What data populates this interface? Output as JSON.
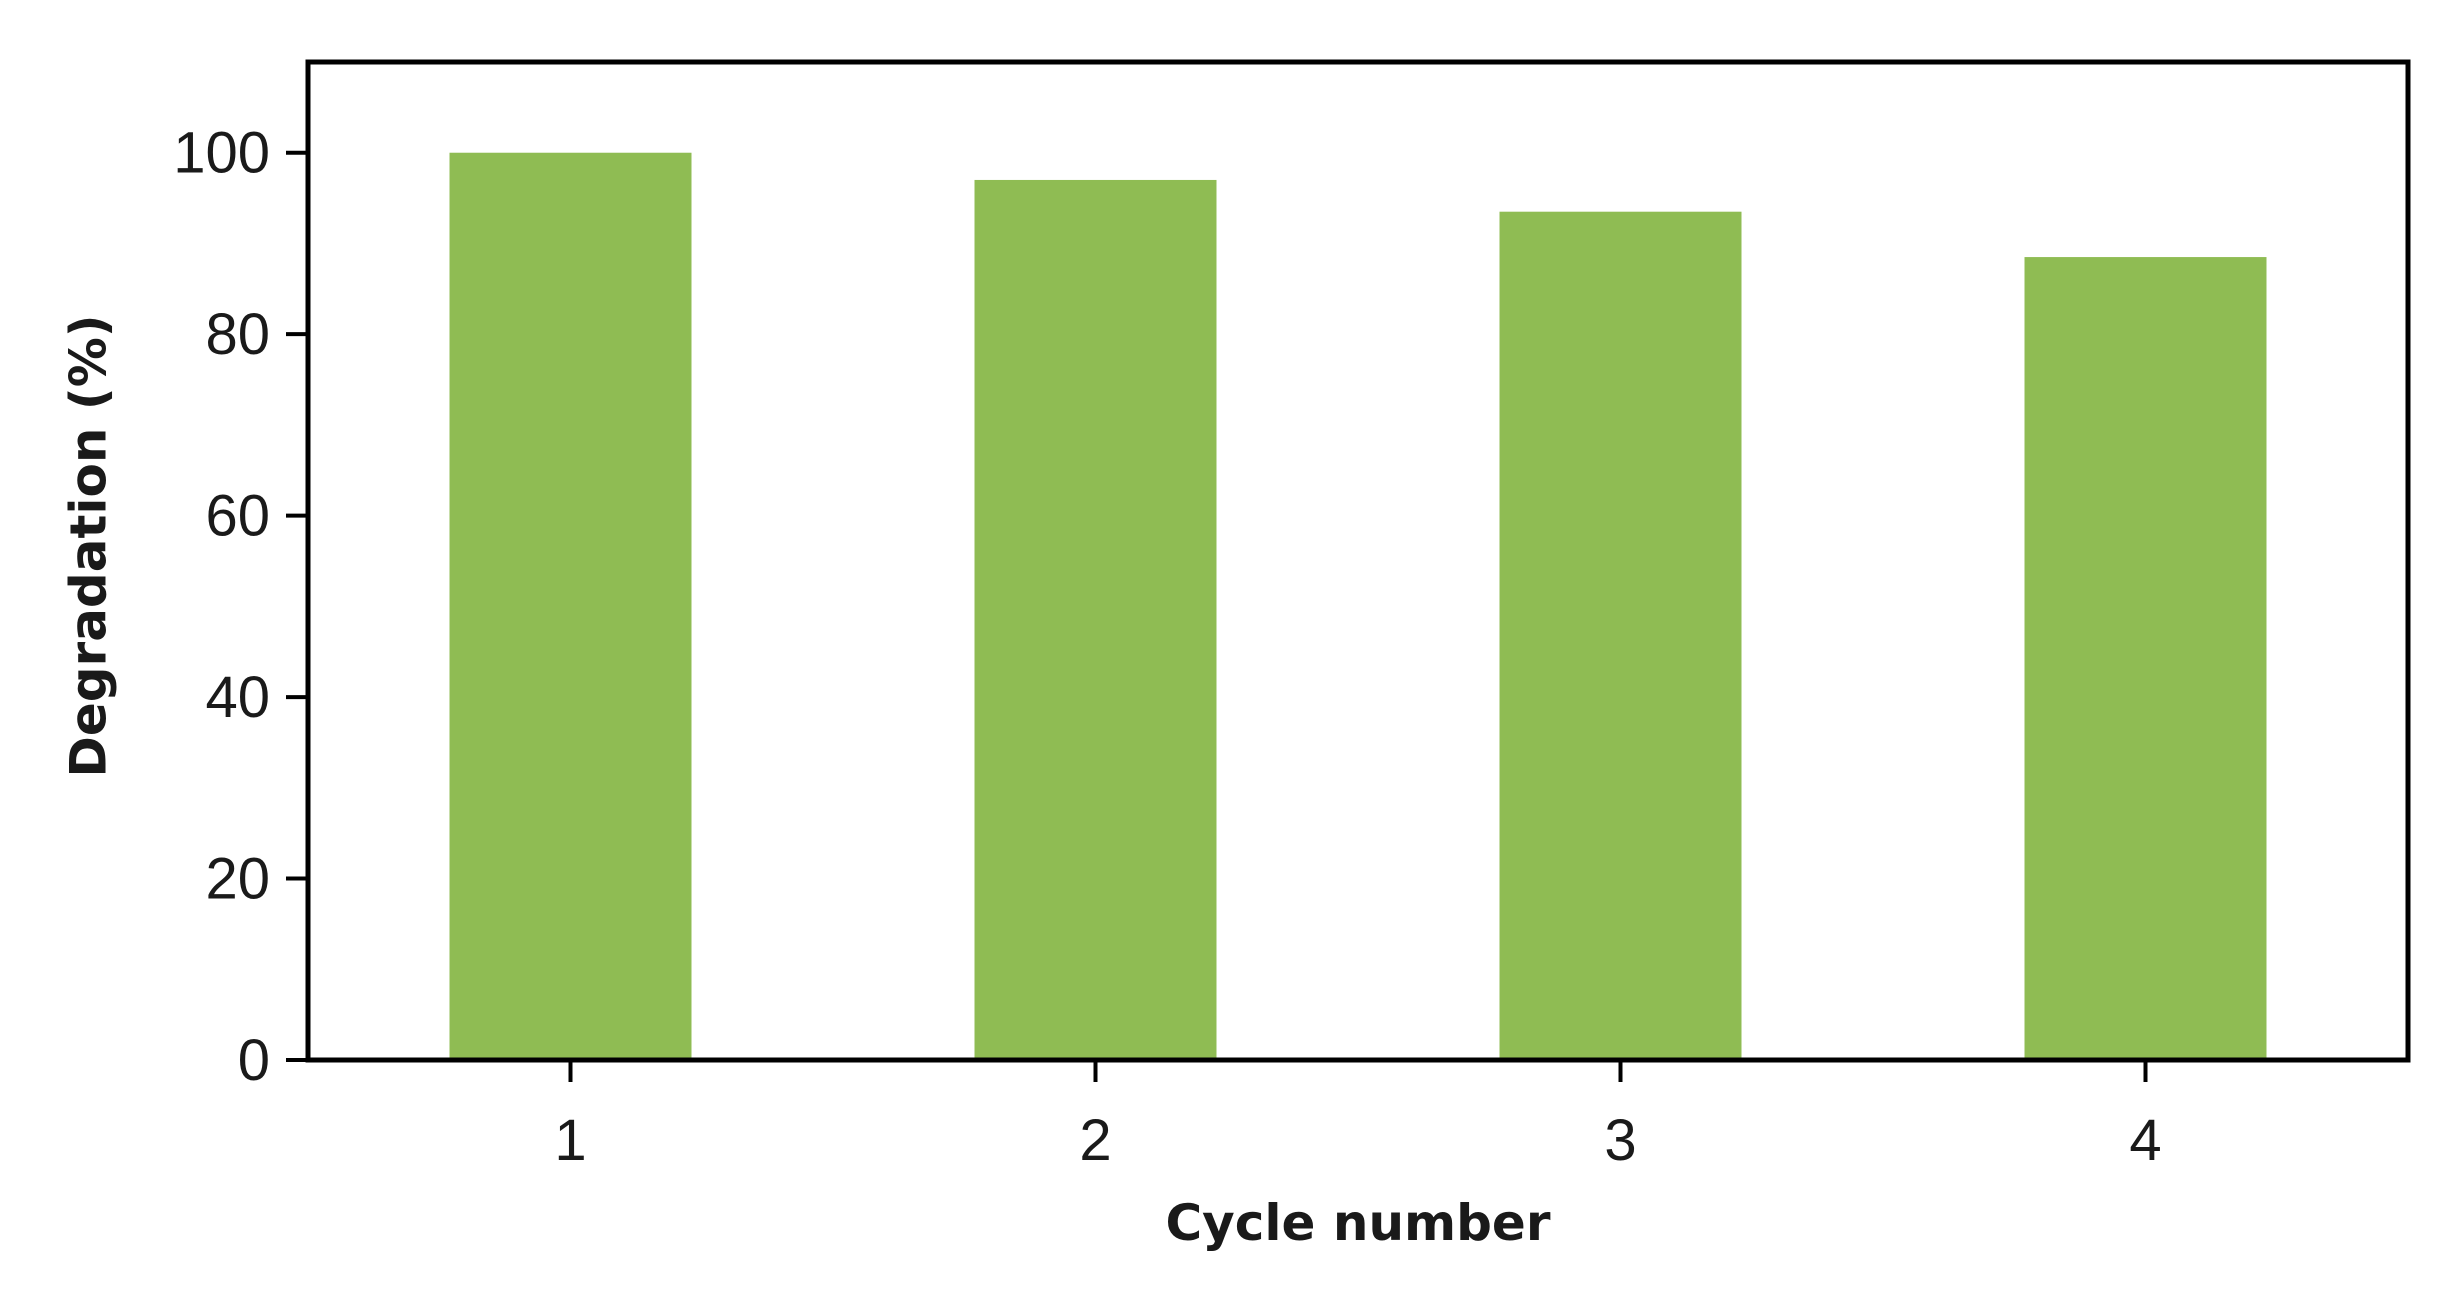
{
  "colors": {
    "bar": "#8fbc53",
    "axis": "#000000"
  },
  "chart_data": {
    "type": "bar",
    "categories": [
      "1",
      "2",
      "3",
      "4"
    ],
    "values": [
      100,
      97,
      93.5,
      88.5
    ],
    "xlabel": "Cycle number",
    "ylabel": "Degradation (%)",
    "ylim": [
      0,
      110
    ],
    "yticks": [
      0,
      20,
      40,
      60,
      80,
      100
    ],
    "grid": false,
    "legend": "none"
  }
}
